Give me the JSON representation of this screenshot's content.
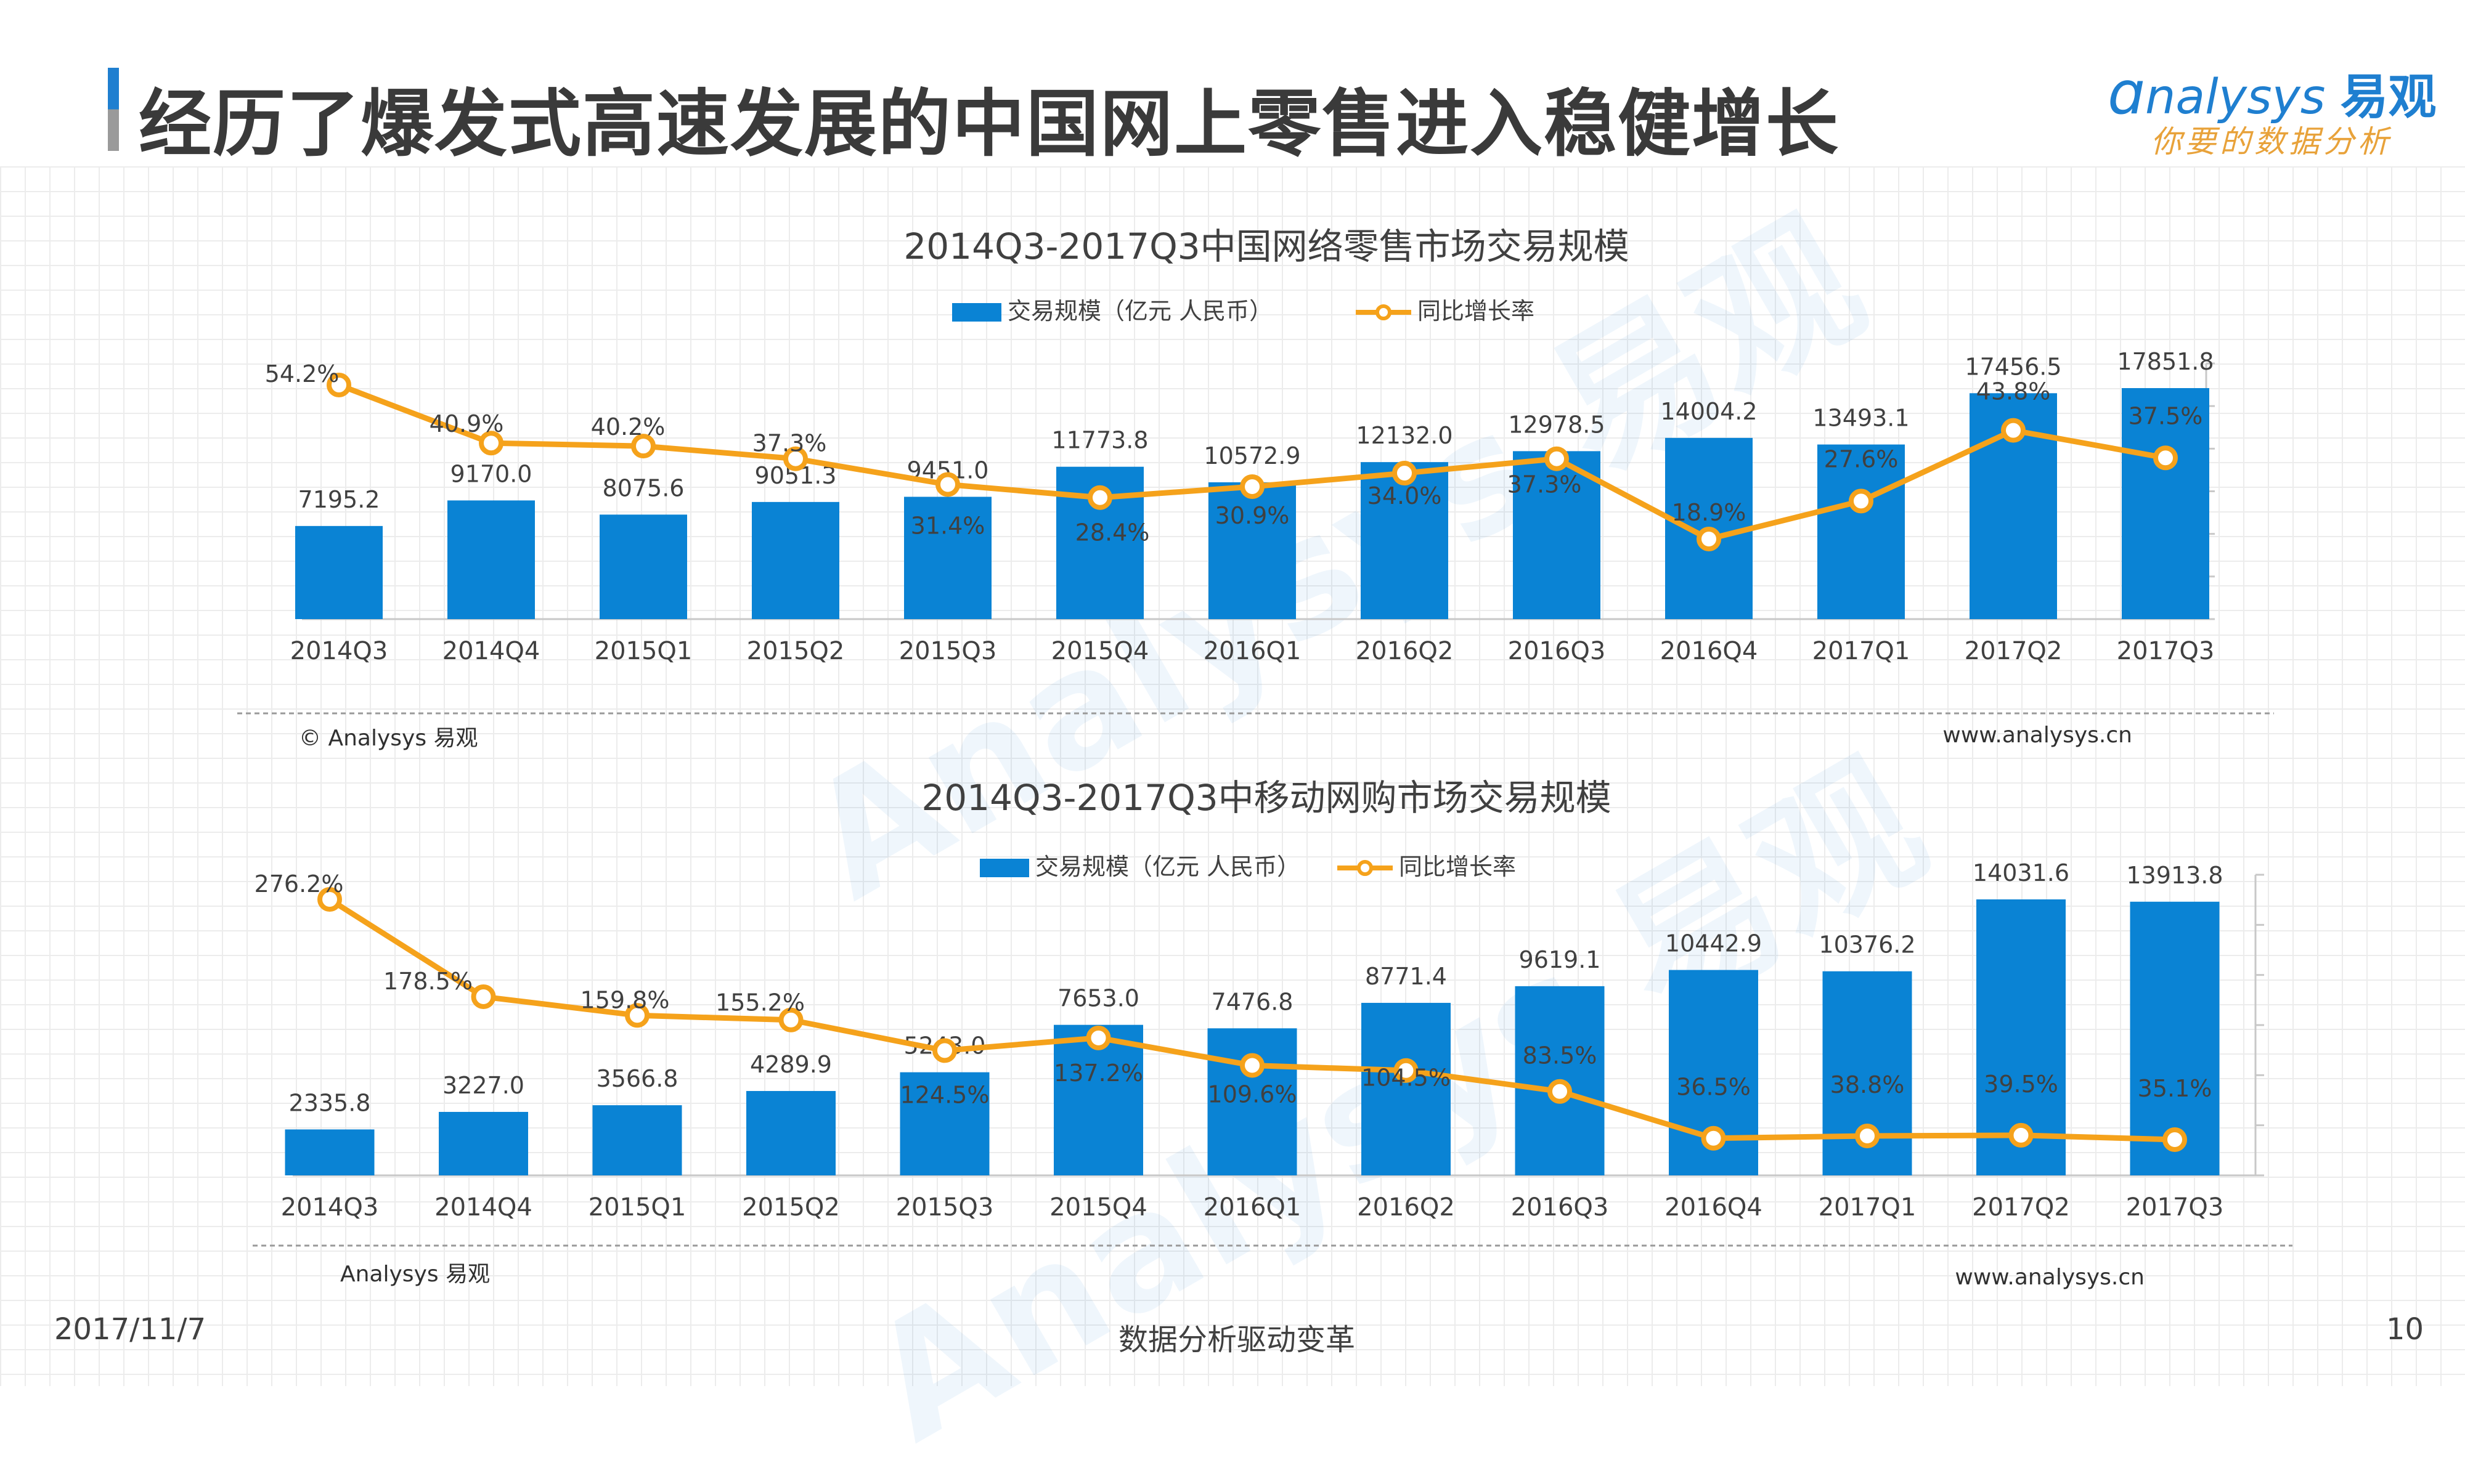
{
  "page": {
    "title": "经历了爆发式高速发展的中国网上零售进入稳健增长",
    "logo_text": "nalysys",
    "logo_cn": "易观",
    "logo_tagline": "你要的数据分析",
    "footer_date": "2017/11/7",
    "footer_center": "数据分析驱动变革",
    "page_number": "10",
    "watermark": "Analysys 易观"
  },
  "colors": {
    "bar": "#0a83d4",
    "line": "#f5a21b",
    "accent": "#1f7fd0"
  },
  "chart_data": [
    {
      "type": "bar",
      "title": "2014Q3-2017Q3中国网络零售市场交易规模",
      "categories": [
        "2014Q3",
        "2014Q4",
        "2015Q1",
        "2015Q2",
        "2015Q3",
        "2015Q4",
        "2016Q1",
        "2016Q2",
        "2016Q3",
        "2016Q4",
        "2017Q1",
        "2017Q2",
        "2017Q3"
      ],
      "series": [
        {
          "name": "交易规模（亿元 人民币）",
          "kind": "bar",
          "values": [
            7195.2,
            9170.0,
            8075.6,
            9051.3,
            9451.0,
            11773.8,
            10572.9,
            12132.0,
            12978.5,
            14004.2,
            13493.1,
            17456.5,
            17851.8
          ],
          "labels": [
            "7195.2",
            "9170.0",
            "8075.6",
            "9051.3",
            "9451.0",
            "11773.8",
            "10572.9",
            "12132.0",
            "12978.5",
            "14004.2",
            "13493.1",
            "17456.5",
            "17851.8"
          ]
        },
        {
          "name": "同比增长率",
          "kind": "line",
          "values": [
            54.2,
            40.9,
            40.2,
            37.3,
            31.4,
            28.4,
            30.9,
            34.0,
            37.3,
            18.9,
            27.6,
            43.8,
            37.5
          ],
          "labels": [
            "54.2%",
            "40.9%",
            "40.2%",
            "37.3%",
            "31.4%",
            "28.4%",
            "30.9%",
            "34.0%",
            "37.3%",
            "18.9%",
            "27.6%",
            "43.8%",
            "37.5%"
          ]
        }
      ],
      "source": "© Analysys 易观",
      "url": "www.analysys.cn",
      "legend_position": "top-center",
      "grid": false
    },
    {
      "type": "bar",
      "title": "2014Q3-2017Q3中移动网购市场交易规模",
      "categories": [
        "2014Q3",
        "2014Q4",
        "2015Q1",
        "2015Q2",
        "2015Q3",
        "2015Q4",
        "2016Q1",
        "2016Q2",
        "2016Q3",
        "2016Q4",
        "2017Q1",
        "2017Q2",
        "2017Q3"
      ],
      "series": [
        {
          "name": "交易规模（亿元 人民币）",
          "kind": "bar",
          "values": [
            2335.8,
            3227.0,
            3566.8,
            4289.9,
            5243.0,
            7653.0,
            7476.8,
            8771.4,
            9619.1,
            10442.9,
            10376.2,
            14031.6,
            13913.8
          ],
          "labels": [
            "2335.8",
            "3227.0",
            "3566.8",
            "4289.9",
            "5243.0",
            "7653.0",
            "7476.8",
            "8771.4",
            "9619.1",
            "10442.9",
            "10376.2",
            "14031.6",
            "13913.8"
          ]
        },
        {
          "name": "同比增长率",
          "kind": "line",
          "values": [
            276.2,
            178.5,
            159.8,
            155.2,
            124.5,
            137.2,
            109.6,
            104.5,
            83.5,
            36.5,
            38.8,
            39.5,
            35.1
          ],
          "labels": [
            "276.2%",
            "178.5%",
            "159.8%",
            "155.2%",
            "124.5%",
            "137.2%",
            "109.6%",
            "104.5%",
            "83.5%",
            "36.5%",
            "38.8%",
            "39.5%",
            "35.1%"
          ]
        }
      ],
      "source": "Analysys 易观",
      "url": "www.analysys.cn",
      "legend_position": "top-center",
      "grid": false
    }
  ]
}
